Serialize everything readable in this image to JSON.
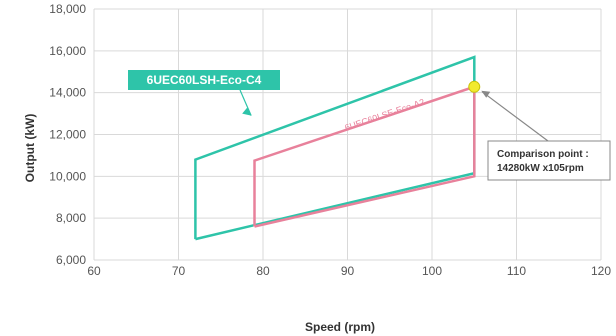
{
  "chart_data": {
    "type": "line",
    "xlabel": "Speed (rpm)",
    "ylabel": "Output (kW)",
    "xlim": [
      60,
      120
    ],
    "ylim": [
      6000,
      18000
    ],
    "xticks": [
      "60",
      "70",
      "80",
      "90",
      "100",
      "110",
      "120"
    ],
    "yticks": [
      "6,000",
      "8,000",
      "10,000",
      "12,000",
      "14,000",
      "16,000",
      "18,000"
    ],
    "grid": true,
    "series": [
      {
        "name": "6UEC60LSH-Eco-C4",
        "color": "#2ec4a9",
        "label_style": "boxed",
        "points": [
          [
            72,
            7000
          ],
          [
            72,
            10800
          ],
          [
            105,
            15700
          ],
          [
            105,
            10150
          ],
          [
            72,
            7000
          ]
        ]
      },
      {
        "name": "6UEC60LSE-Eco-A2",
        "color": "#e8819b",
        "label_style": "slanted",
        "points": [
          [
            79,
            7600
          ],
          [
            79,
            10750
          ],
          [
            105,
            14280
          ],
          [
            105,
            10000
          ],
          [
            79,
            7600
          ]
        ]
      }
    ],
    "annotation": {
      "line1": "Comparison point :",
      "line2": "14280kW x105rpm",
      "point": [
        105,
        14280
      ],
      "marker_color": "#f2ea2e"
    }
  }
}
